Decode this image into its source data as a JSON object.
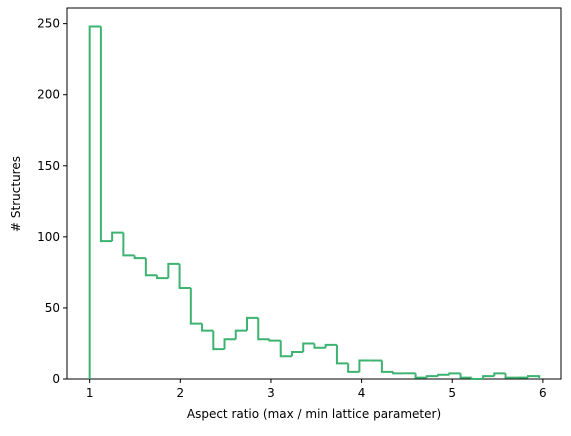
{
  "chart_data": {
    "type": "histogram",
    "xlabel": "Aspect ratio (max / min lattice parameter)",
    "ylabel": "# Structures",
    "bins": [
      1,
      1.124,
      1.248,
      1.372,
      1.496,
      1.62,
      1.744,
      1.868,
      1.992,
      2.116,
      2.24,
      2.364,
      2.488,
      2.612,
      2.736,
      2.86,
      2.984,
      3.108,
      3.232,
      3.356,
      3.48,
      3.604,
      3.728,
      3.852,
      3.976,
      4.1,
      4.224,
      4.348,
      4.472,
      4.596,
      4.72,
      4.844,
      4.968,
      5.092,
      5.216,
      5.34,
      5.464,
      5.588,
      5.712,
      5.836,
      5.96
    ],
    "values": [
      248,
      97,
      103,
      87,
      85,
      73,
      71,
      81,
      64,
      39,
      34,
      21,
      28,
      34,
      43,
      28,
      27,
      16,
      19,
      25,
      22,
      24,
      11,
      5,
      13,
      13,
      5,
      4,
      4,
      1,
      2,
      3,
      4,
      1,
      0,
      2,
      4,
      1,
      1,
      2
    ],
    "color": "#3cb371",
    "xlim": [
      0.75,
      6.2
    ],
    "xticks": [
      1,
      2,
      3,
      4,
      5,
      6
    ],
    "ylim": [
      0,
      261
    ],
    "yticks": [
      0,
      50,
      100,
      150,
      200,
      250
    ]
  }
}
